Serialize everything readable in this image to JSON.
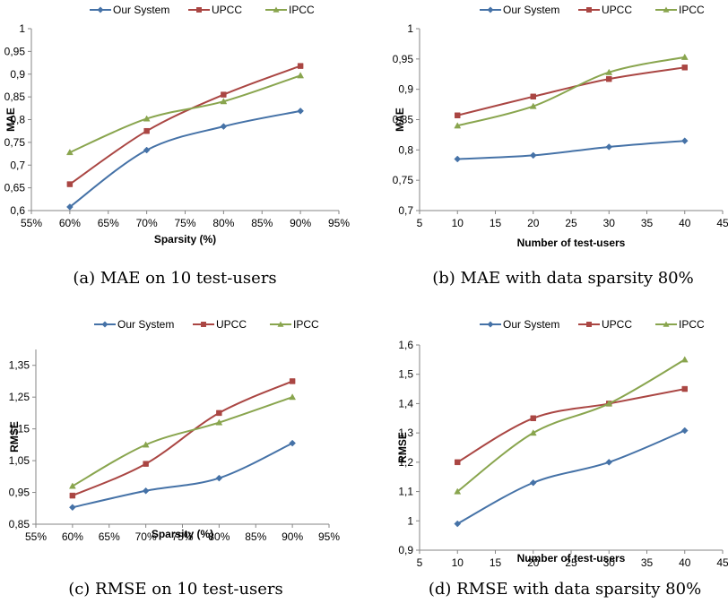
{
  "colors": {
    "our": "#4572A7",
    "upcc": "#AA4643",
    "ipcc": "#89A54E",
    "axis": "#868686",
    "text": "#000000"
  },
  "chart_data": [
    {
      "type": "line",
      "caption": "(a)  MAE on 10 test-users",
      "xlabel": "Sparsity (%)",
      "ylabel": "MAE",
      "xlim": [
        55,
        95
      ],
      "ylim": [
        0.6,
        1
      ],
      "xticks": [
        55,
        60,
        65,
        70,
        75,
        80,
        85,
        90,
        95
      ],
      "xtick_labels": [
        "55%",
        "60%",
        "65%",
        "70%",
        "75%",
        "80%",
        "85%",
        "90%",
        "95%"
      ],
      "yticks": [
        0.6,
        0.65,
        0.7,
        0.75,
        0.8,
        0.85,
        0.9,
        0.95,
        1
      ],
      "ytick_labels": [
        "0,6",
        "0,65",
        "0,7",
        "0,75",
        "0,8",
        "0,85",
        "0,9",
        "0,95",
        "1"
      ],
      "legend": "top",
      "grid": false,
      "x": [
        60,
        70,
        80,
        90
      ],
      "series": [
        {
          "name": "Our System",
          "values": [
            0.608,
            0.733,
            0.785,
            0.819
          ]
        },
        {
          "name": "UPCC",
          "values": [
            0.658,
            0.775,
            0.855,
            0.918
          ]
        },
        {
          "name": "IPCC",
          "values": [
            0.728,
            0.802,
            0.84,
            0.897
          ]
        }
      ]
    },
    {
      "type": "line",
      "caption": "(b)  MAE with data sparsity 80%",
      "xlabel": "Number of test-users",
      "ylabel": "MAE",
      "xlim": [
        5,
        45
      ],
      "ylim": [
        0.7,
        1
      ],
      "xticks": [
        5,
        10,
        15,
        20,
        25,
        30,
        35,
        40,
        45
      ],
      "xtick_labels": [
        "5",
        "10",
        "15",
        "20",
        "25",
        "30",
        "35",
        "40",
        "45"
      ],
      "yticks": [
        0.7,
        0.75,
        0.8,
        0.85,
        0.9,
        0.95,
        1
      ],
      "ytick_labels": [
        "0,7",
        "0,75",
        "0,8",
        "0,85",
        "0,9",
        "0,95",
        "1"
      ],
      "legend": "top",
      "grid": false,
      "x": [
        10,
        20,
        30,
        40
      ],
      "series": [
        {
          "name": "Our System",
          "values": [
            0.785,
            0.791,
            0.805,
            0.815
          ]
        },
        {
          "name": "UPCC",
          "values": [
            0.857,
            0.888,
            0.917,
            0.936
          ]
        },
        {
          "name": "IPCC",
          "values": [
            0.84,
            0.872,
            0.928,
            0.953
          ]
        }
      ]
    },
    {
      "type": "line",
      "caption": "(c)  RMSE on 10 test-users",
      "xlabel": "Sparsity (%)",
      "ylabel": "RMSE",
      "xlim": [
        55,
        95
      ],
      "ylim": [
        0.85,
        1.4
      ],
      "xticks": [
        55,
        60,
        65,
        70,
        75,
        80,
        85,
        90,
        95
      ],
      "xtick_labels": [
        "55%",
        "60%",
        "65%",
        "70%",
        "75%",
        "80%",
        "85%",
        "90%",
        "95%"
      ],
      "yticks": [
        0.85,
        0.95,
        1.05,
        1.15,
        1.25,
        1.35
      ],
      "ytick_labels": [
        "0,85",
        "0,95",
        "1,05",
        "1,15",
        "1,25",
        "1,35"
      ],
      "legend": "top",
      "grid": false,
      "x": [
        60,
        70,
        80,
        90
      ],
      "series": [
        {
          "name": "Our System",
          "values": [
            0.903,
            0.955,
            0.995,
            1.105
          ]
        },
        {
          "name": "UPCC",
          "values": [
            0.94,
            1.04,
            1.2,
            1.3
          ]
        },
        {
          "name": "IPCC",
          "values": [
            0.97,
            1.1,
            1.17,
            1.25
          ]
        }
      ]
    },
    {
      "type": "line",
      "caption": "(d)  RMSE with data sparsity 80%",
      "xlabel": "Number of test-users",
      "ylabel": "RMSE",
      "xlim": [
        5,
        45
      ],
      "ylim": [
        0.9,
        1.6
      ],
      "xticks": [
        5,
        10,
        15,
        20,
        25,
        30,
        35,
        40,
        45
      ],
      "xtick_labels": [
        "5",
        "10",
        "15",
        "20",
        "25",
        "30",
        "35",
        "40",
        "45"
      ],
      "yticks": [
        0.9,
        1.0,
        1.1,
        1.2,
        1.3,
        1.4,
        1.5,
        1.6
      ],
      "ytick_labels": [
        "0,9",
        "1",
        "1,1",
        "1,2",
        "1,3",
        "1,4",
        "1,5",
        "1,6"
      ],
      "legend": "top",
      "grid": false,
      "x": [
        10,
        20,
        30,
        40
      ],
      "series": [
        {
          "name": "Our System",
          "values": [
            0.99,
            1.13,
            1.2,
            1.308
          ]
        },
        {
          "name": "UPCC",
          "values": [
            1.2,
            1.35,
            1.4,
            1.45
          ]
        },
        {
          "name": "IPCC",
          "values": [
            1.1,
            1.3,
            1.4,
            1.55
          ]
        }
      ]
    }
  ]
}
